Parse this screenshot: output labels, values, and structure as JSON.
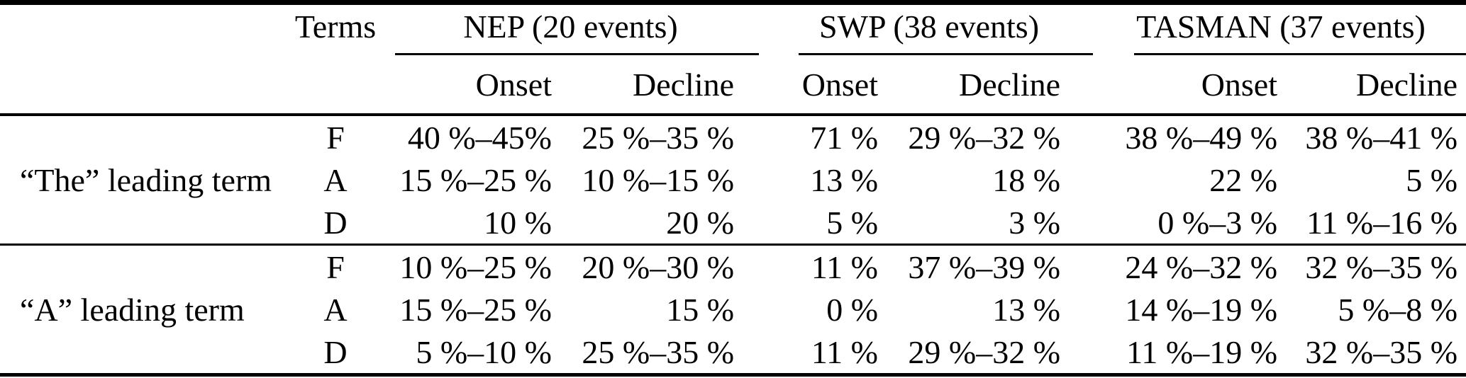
{
  "table": {
    "col_headers": {
      "terms": "Terms",
      "groups": [
        {
          "label": "NEP (20 events)",
          "sub": [
            "Onset",
            "Decline"
          ]
        },
        {
          "label": "SWP (38 events)",
          "sub": [
            "Onset",
            "Decline"
          ]
        },
        {
          "label": "TASMAN (37 events)",
          "sub": [
            "Onset",
            "Decline"
          ]
        }
      ]
    },
    "blocks": [
      {
        "row_label": "“The” leading term",
        "rows": [
          {
            "term": "F",
            "values": [
              "40 %–45%",
              "25 %–35 %",
              "71 %",
              "29 %–32 %",
              "38 %–49 %",
              "38 %–41 %"
            ]
          },
          {
            "term": "A",
            "values": [
              "15 %–25 %",
              "10 %–15 %",
              "13 %",
              "18 %",
              "22 %",
              "5 %"
            ]
          },
          {
            "term": "D",
            "values": [
              "10 %",
              "20 %",
              "5 %",
              "3 %",
              "0 %–3 %",
              "11 %–16 %"
            ]
          }
        ]
      },
      {
        "row_label": "“A” leading term",
        "rows": [
          {
            "term": "F",
            "values": [
              "10 %–25 %",
              "20 %–30 %",
              "11 %",
              "37 %–39 %",
              "24 %–32 %",
              "32 %–35 %"
            ]
          },
          {
            "term": "A",
            "values": [
              "15 %–25 %",
              "15 %",
              "0 %",
              "13 %",
              "14 %–19 %",
              "5 %–8 %"
            ]
          },
          {
            "term": "D",
            "values": [
              "5 %–10 %",
              "25 %–35 %",
              "11 %",
              "29 %–32 %",
              "11 %–19 %",
              "32 %–35 %"
            ]
          }
        ]
      }
    ]
  },
  "colors": {
    "text": "#000000",
    "background": "#ffffff",
    "rule": "#000000"
  }
}
